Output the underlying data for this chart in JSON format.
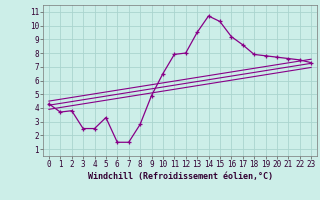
{
  "xlabel": "Windchill (Refroidissement éolien,°C)",
  "x_ticks": [
    0,
    1,
    2,
    3,
    4,
    5,
    6,
    7,
    8,
    9,
    10,
    11,
    12,
    13,
    14,
    15,
    16,
    17,
    18,
    19,
    20,
    21,
    22,
    23
  ],
  "y_ticks": [
    1,
    2,
    3,
    4,
    5,
    6,
    7,
    8,
    9,
    10,
    11
  ],
  "xlim": [
    -0.5,
    23.5
  ],
  "ylim": [
    0.5,
    11.5
  ],
  "bg_color": "#cceee8",
  "grid_color": "#aad4ce",
  "line_color": "#880088",
  "line1_x": [
    0,
    1,
    2,
    3,
    4,
    5,
    6,
    7,
    8,
    9,
    10,
    11,
    12,
    13,
    14,
    15,
    16,
    17,
    18,
    19,
    20,
    21,
    22,
    23
  ],
  "line1_y": [
    4.3,
    3.7,
    3.8,
    2.5,
    2.5,
    3.3,
    1.5,
    1.5,
    2.8,
    4.9,
    6.5,
    7.9,
    8.0,
    9.5,
    10.7,
    10.3,
    9.2,
    8.6,
    7.9,
    7.8,
    7.7,
    7.6,
    7.5,
    7.3
  ],
  "line2_x": [
    0,
    23
  ],
  "line2_y": [
    4.2,
    7.25
  ],
  "line3_x": [
    0,
    23
  ],
  "line3_y": [
    4.5,
    7.55
  ],
  "line4_x": [
    0,
    23
  ],
  "line4_y": [
    3.9,
    6.95
  ],
  "tick_fontsize": 5.5,
  "xlabel_fontsize": 6.0
}
